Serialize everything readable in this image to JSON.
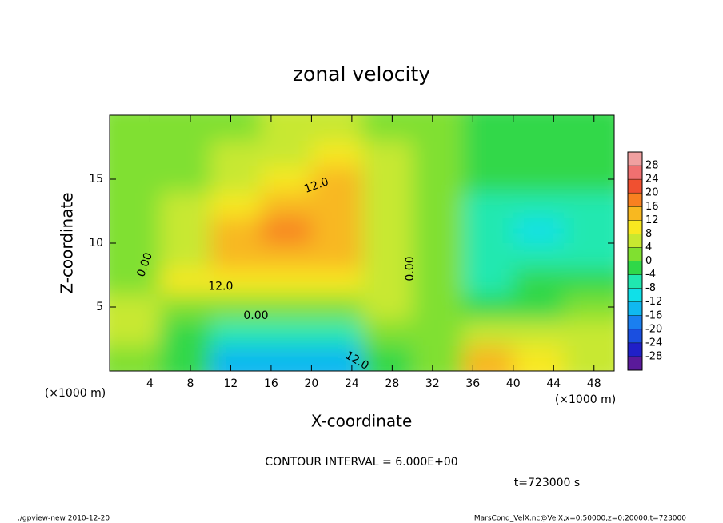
{
  "chart_data": {
    "type": "contour",
    "title": "zonal velocity",
    "x_label": "X-coordinate",
    "y_label": "Z-coordinate",
    "x_unit": "(×1000 m)",
    "note": "CONTOUR INTERVAL = 6.000E+00",
    "time_label": "t=723000 s",
    "footer_left": "./gpview-new  2010-12-20",
    "footer_right": "MarsCond_VelX.nc@VelX,x=0:50000,z=0:20000,t=723000",
    "xlim": [
      0,
      50
    ],
    "ylim": [
      0,
      20
    ],
    "xticks": [
      4,
      8,
      12,
      16,
      20,
      24,
      28,
      32,
      36,
      40,
      44,
      48
    ],
    "yticks": [
      5,
      10,
      15
    ],
    "x_edges": [
      0,
      5,
      10,
      15,
      20,
      25,
      30,
      35,
      40,
      45,
      50
    ],
    "z_edges": [
      0,
      2,
      4,
      6,
      8,
      10,
      12,
      14,
      16,
      18,
      20
    ],
    "values": [
      [
        2,
        -4,
        -14,
        -16,
        -14,
        -2,
        2,
        12,
        10,
        6
      ],
      [
        4,
        -2,
        -8,
        -8,
        -6,
        2,
        2,
        4,
        4,
        6
      ],
      [
        4,
        2,
        0,
        0,
        0,
        4,
        0,
        -4,
        -2,
        0
      ],
      [
        2,
        8,
        8,
        10,
        10,
        6,
        0,
        -6,
        -4,
        -4
      ],
      [
        2,
        6,
        12,
        14,
        12,
        6,
        0,
        -8,
        -8,
        -6
      ],
      [
        0,
        4,
        12,
        16,
        14,
        6,
        0,
        -8,
        -10,
        -8
      ],
      [
        0,
        4,
        8,
        14,
        14,
        6,
        0,
        -6,
        -8,
        -6
      ],
      [
        0,
        2,
        4,
        8,
        12,
        6,
        0,
        -4,
        -4,
        -4
      ],
      [
        0,
        2,
        4,
        6,
        10,
        4,
        0,
        -2,
        -2,
        -2
      ],
      [
        0,
        2,
        2,
        4,
        4,
        2,
        0,
        -2,
        -2,
        -2
      ]
    ],
    "levels": [
      -32,
      -28,
      -24,
      -20,
      -16,
      -12,
      -8,
      -4,
      0,
      4,
      8,
      12,
      16,
      20,
      24,
      28,
      32
    ],
    "colors": [
      "#5a1a9a",
      "#2020c8",
      "#1a4fe0",
      "#1a7ff0",
      "#10b8f0",
      "#10e0e8",
      "#20e8b0",
      "#30d848",
      "#80e030",
      "#c8e830",
      "#f8e820",
      "#f8b820",
      "#f88020",
      "#f05030",
      "#f07070",
      "#f0a0a0"
    ],
    "colorbar_ticks": [
      -28,
      -24,
      -20,
      -16,
      -12,
      -8,
      -4,
      0,
      4,
      8,
      12,
      16,
      20,
      24,
      28
    ],
    "contour_labels": [
      {
        "label": "12.0",
        "x": 20.5,
        "z": 14.5,
        "angle": -20
      },
      {
        "label": "0.00",
        "x": 3.5,
        "z": 8.3,
        "angle": -70
      },
      {
        "label": "12.0",
        "x": 11,
        "z": 6.6,
        "angle": 0
      },
      {
        "label": "0.00",
        "x": 14.5,
        "z": 4.3,
        "angle": 0
      },
      {
        "label": "0.00",
        "x": 29.8,
        "z": 8,
        "angle": -90
      },
      {
        "label": "12.0",
        "x": 24.5,
        "z": 0.8,
        "angle": 30
      }
    ]
  }
}
